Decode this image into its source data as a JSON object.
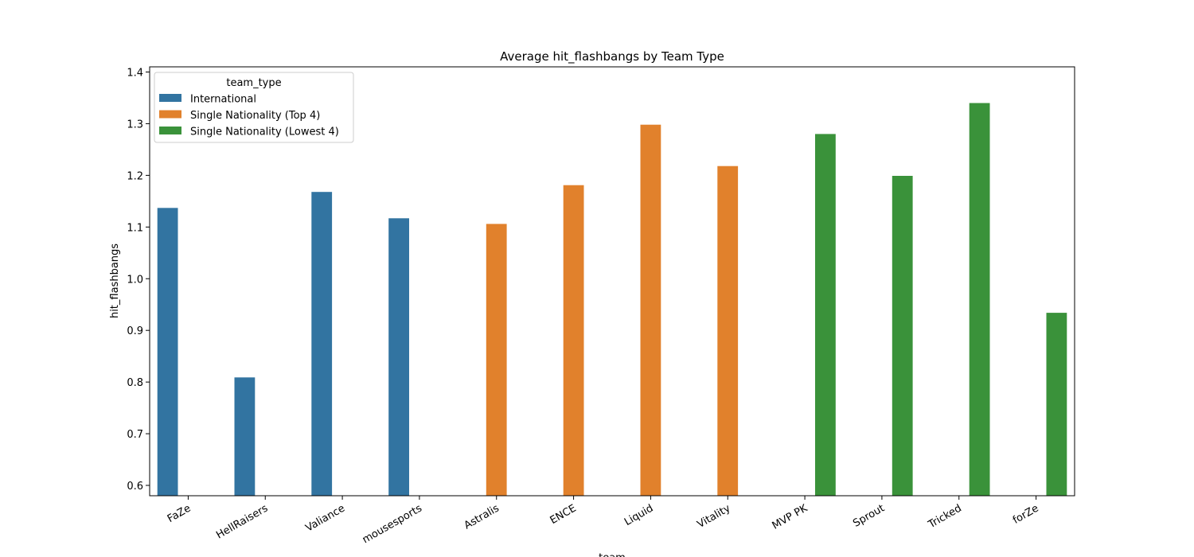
{
  "chart_data": {
    "type": "bar",
    "title": "Average hit_flashbangs by Team Type",
    "xlabel": "team",
    "ylabel": "hit_flashbangs",
    "ylim": [
      0.58,
      1.41
    ],
    "yticks": [
      "0.6",
      "0.7",
      "0.8",
      "0.9",
      "1.0",
      "1.1",
      "1.2",
      "1.3",
      "1.4"
    ],
    "grid": false,
    "legend": {
      "title": "team_type",
      "placement": "top-left"
    },
    "categories": [
      "FaZe",
      "HellRaisers",
      "Valiance",
      "mousesports",
      "Astralis",
      "ENCE",
      "Liquid",
      "Vitality",
      "MVP PK",
      "Sprout",
      "Tricked",
      "forZe"
    ],
    "series": [
      {
        "name": "International",
        "color": "#3274a1",
        "values": [
          1.137,
          0.809,
          1.168,
          1.117,
          null,
          null,
          null,
          null,
          null,
          null,
          null,
          null
        ]
      },
      {
        "name": "Single Nationality (Top 4)",
        "color": "#e1812c",
        "values": [
          null,
          null,
          null,
          null,
          1.106,
          1.181,
          1.298,
          1.218,
          null,
          null,
          null,
          null
        ]
      },
      {
        "name": "Single Nationality (Lowest 4)",
        "color": "#3a923a",
        "values": [
          null,
          null,
          null,
          null,
          null,
          null,
          null,
          null,
          1.28,
          1.199,
          1.34,
          0.934
        ]
      }
    ]
  }
}
